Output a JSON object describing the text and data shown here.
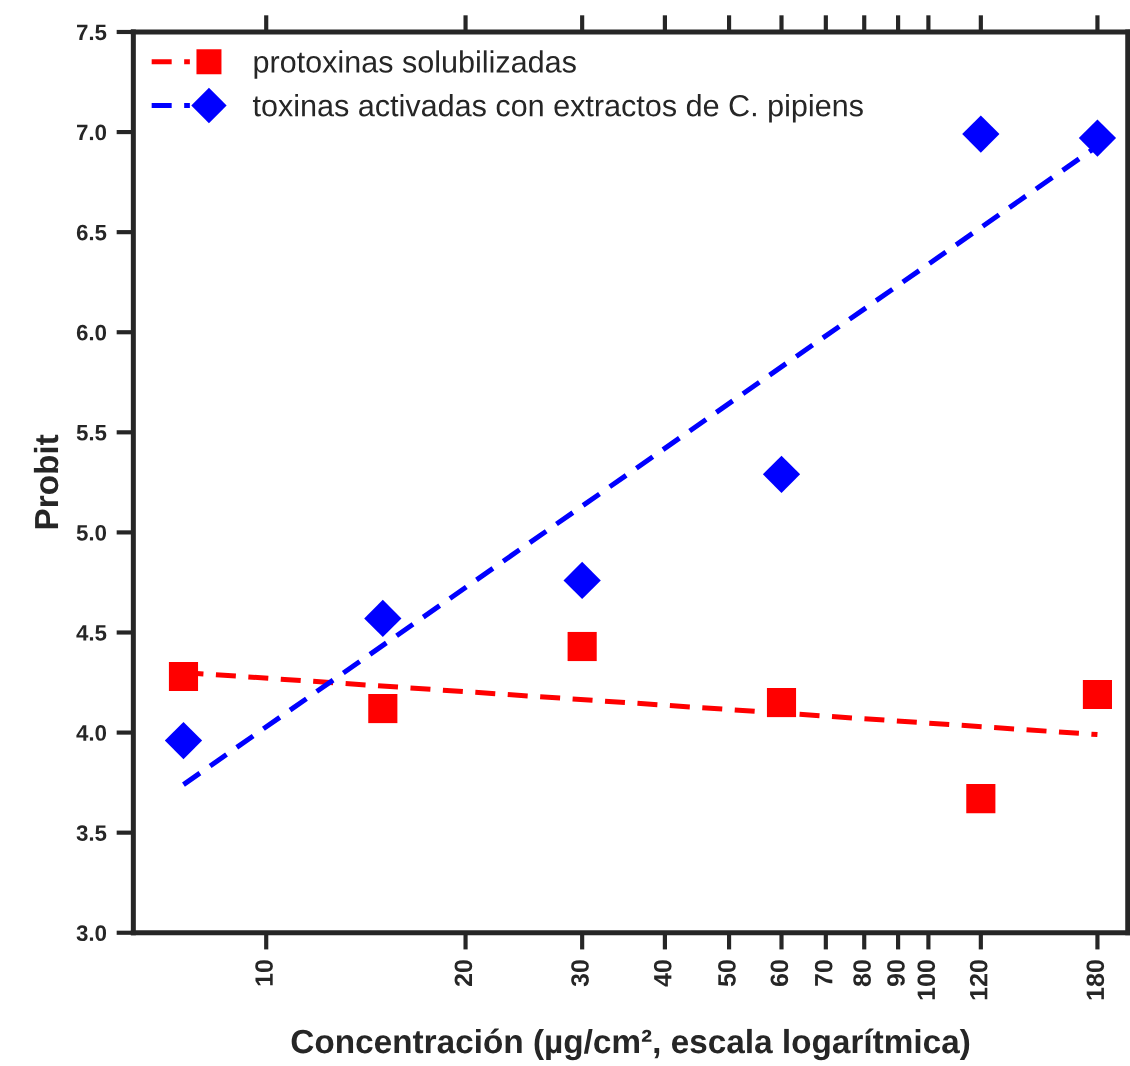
{
  "chart_data": {
    "type": "scatter",
    "xlabel": "Concentración (µg/cm², escala logarítmica)",
    "ylabel": "Probit",
    "log": "x",
    "xlim": [
      6.3,
      200
    ],
    "xticks": [
      10,
      20,
      30,
      40,
      50,
      60,
      70,
      80,
      90,
      100,
      120,
      180
    ],
    "ylim": [
      3.0,
      7.5
    ],
    "yticks": [
      {
        "value": 3,
        "label": "3.0"
      },
      {
        "value": 3.5,
        "label": "3.5"
      },
      {
        "value": 4,
        "label": "4.0"
      },
      {
        "value": 4.5,
        "label": "4.5"
      },
      {
        "value": 5,
        "label": "5.0"
      },
      {
        "value": 5.5,
        "label": "5.5"
      },
      {
        "value": 6,
        "label": "6.0"
      },
      {
        "value": 6.5,
        "label": "6.5"
      },
      {
        "value": 7,
        "label": "7.0"
      },
      {
        "value": 7.5,
        "label": "7.5"
      }
    ],
    "grid": false,
    "legend": "top left",
    "series": [
      {
        "name": "protoxinas solubilizadas",
        "color": "#ff0000",
        "marker": "square",
        "x": [
          7.5,
          15,
          30,
          60,
          120,
          180
        ],
        "values": [
          4.28,
          4.12,
          4.43,
          4.15,
          3.67,
          4.19
        ]
      },
      {
        "name": "toxinas activadas con extractos de C. pipiens",
        "color": "#0000ff",
        "marker": "diamond",
        "x": [
          7.5,
          15,
          30,
          60,
          120,
          180
        ],
        "values": [
          3.96,
          4.57,
          4.76,
          5.29,
          6.99,
          6.97
        ]
      },
      {
        "type": "line",
        "color": "#ff0000",
        "line_style": "dashed",
        "marker": "none",
        "x": [
          7.5,
          180
        ],
        "values": [
          4.3,
          3.99
        ]
      },
      {
        "type": "line",
        "color": "#0000ff",
        "line_style": "dashed",
        "marker": "none",
        "x": [
          7.5,
          180
        ],
        "values": [
          3.74,
          6.93
        ]
      }
    ]
  }
}
